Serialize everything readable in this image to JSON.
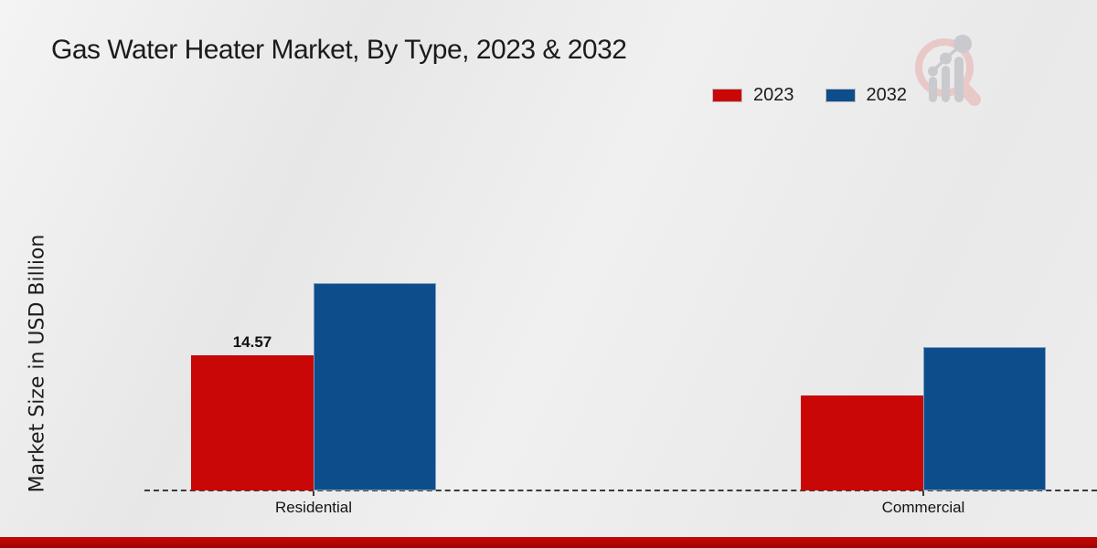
{
  "title": "Gas Water Heater Market, By Type, 2023 & 2032",
  "chart_data": {
    "type": "bar",
    "categories": [
      "Residential",
      "Commercial"
    ],
    "series": [
      {
        "name": "2023",
        "color": "#c90707",
        "values": [
          14.57,
          10.25
        ]
      },
      {
        "name": "2032",
        "color": "#0d4d8c",
        "values": [
          22.35,
          15.45
        ]
      }
    ],
    "value_labels": [
      {
        "series": "2023",
        "category": "Residential",
        "text": "14.57"
      }
    ],
    "title": "Gas Water Heater Market, By Type, 2023 & 2032",
    "xlabel": "",
    "ylabel": "Market Size in USD Billion",
    "ylim": [
      0,
      25
    ],
    "grid": false,
    "y_ticks_visible": false,
    "legend_position": "top-right",
    "baseline_style": "dashed"
  },
  "legend": [
    {
      "label": "2023",
      "color": "#c90707"
    },
    {
      "label": "2032",
      "color": "#0d4d8c"
    }
  ],
  "icons": {
    "watermark": "magnifier-bar-chart-logo-icon"
  },
  "colors": {
    "bar_2023": "#c90707",
    "bar_2032": "#0d4d8c",
    "footer_strip": "#b40505",
    "background": "#ececec",
    "text": "#1b1b1b",
    "axis_line": "#3a3a3a",
    "watermark_pink": "#e9c5c5",
    "watermark_gray": "#c7c7cb"
  }
}
